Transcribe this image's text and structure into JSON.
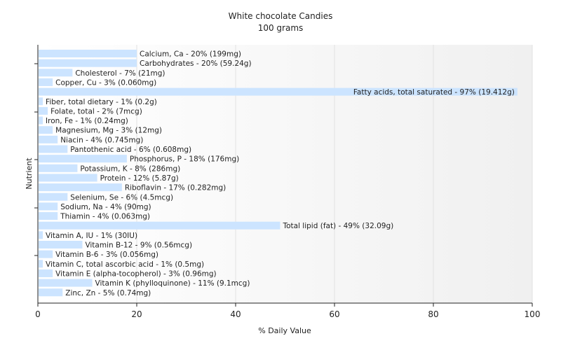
{
  "chart_data": {
    "type": "bar",
    "orientation": "horizontal",
    "title": "White chocolate Candies",
    "subtitle": "100 grams",
    "xlabel": "% Daily Value",
    "ylabel": "Nutrient",
    "xlim": [
      0,
      100
    ],
    "xticks": [
      0,
      20,
      40,
      60,
      80,
      100
    ],
    "grid": true,
    "bar_color": "#cce4ff",
    "categories": [
      "Calcium, Ca",
      "Carbohydrates",
      "Cholesterol",
      "Copper, Cu",
      "Fatty acids, total saturated",
      "Fiber, total dietary",
      "Folate, total",
      "Iron, Fe",
      "Magnesium, Mg",
      "Niacin",
      "Pantothenic acid",
      "Phosphorus, P",
      "Potassium, K",
      "Protein",
      "Riboflavin",
      "Selenium, Se",
      "Sodium, Na",
      "Thiamin",
      "Total lipid (fat)",
      "Vitamin A, IU",
      "Vitamin B-12",
      "Vitamin B-6",
      "Vitamin C, total ascorbic acid",
      "Vitamin E (alpha-tocopherol)",
      "Vitamin K (phylloquinone)",
      "Zinc, Zn"
    ],
    "values": [
      20,
      20,
      7,
      3,
      97,
      1,
      2,
      1,
      3,
      4,
      6,
      18,
      8,
      12,
      17,
      6,
      4,
      4,
      49,
      1,
      9,
      3,
      1,
      3,
      11,
      5
    ],
    "labels": [
      "Calcium, Ca - 20% (199mg)",
      "Carbohydrates - 20% (59.24g)",
      "Cholesterol - 7% (21mg)",
      "Copper, Cu - 3% (0.060mg)",
      "Fatty acids, total saturated - 97% (19.412g)",
      "Fiber, total dietary - 1% (0.2g)",
      "Folate, total - 2% (7mcg)",
      "Iron, Fe - 1% (0.24mg)",
      "Magnesium, Mg - 3% (12mg)",
      "Niacin - 4% (0.745mg)",
      "Pantothenic acid - 6% (0.608mg)",
      "Phosphorus, P - 18% (176mg)",
      "Potassium, K - 8% (286mg)",
      "Protein - 12% (5.87g)",
      "Riboflavin - 17% (0.282mg)",
      "Selenium, Se - 6% (4.5mcg)",
      "Sodium, Na - 4% (90mg)",
      "Thiamin - 4% (0.063mg)",
      "Total lipid (fat) - 49% (32.09g)",
      "Vitamin A, IU - 1% (30IU)",
      "Vitamin B-12 - 9% (0.56mcg)",
      "Vitamin B-6 - 3% (0.056mg)",
      "Vitamin C, total ascorbic acid - 1% (0.5mg)",
      "Vitamin E (alpha-tocopherol) - 3% (0.96mg)",
      "Vitamin K (phylloquinone) - 11% (9.1mcg)",
      "Zinc, Zn - 5% (0.74mg)"
    ]
  }
}
